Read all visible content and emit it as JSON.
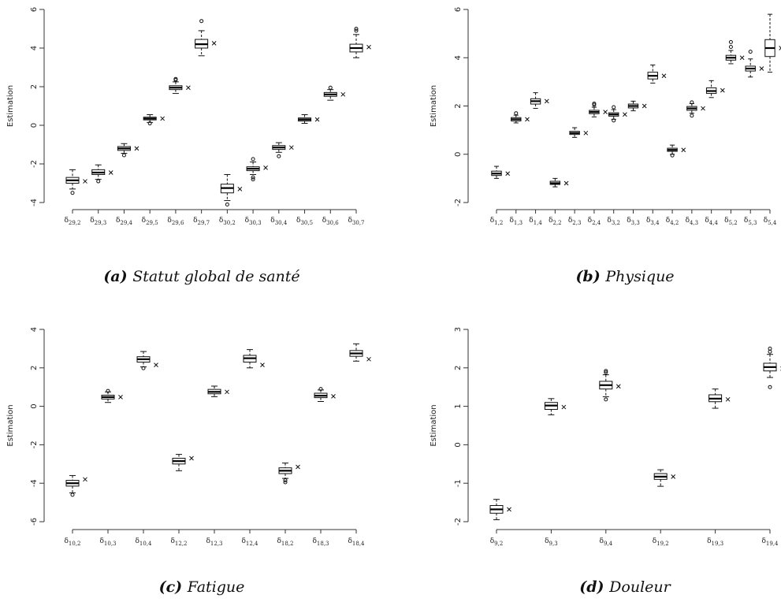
{
  "chart_data": [
    {
      "type": "boxplot",
      "caption_letter": "(a)",
      "caption_text": "Statut global de santé",
      "ylabel": "Estimation",
      "ylim": [
        -4,
        6
      ],
      "yticks": [
        -4,
        -2,
        0,
        2,
        4,
        6
      ],
      "categories": [
        {
          "base": "δ",
          "sub": "29,2"
        },
        {
          "base": "δ",
          "sub": "29,3"
        },
        {
          "base": "δ",
          "sub": "29,4"
        },
        {
          "base": "δ",
          "sub": "29,5"
        },
        {
          "base": "δ",
          "sub": "29,6"
        },
        {
          "base": "δ",
          "sub": "29,7"
        },
        {
          "base": "δ",
          "sub": "30,2"
        },
        {
          "base": "δ",
          "sub": "30,3"
        },
        {
          "base": "δ",
          "sub": "30,4"
        },
        {
          "base": "δ",
          "sub": "30,5"
        },
        {
          "base": "δ",
          "sub": "30,6"
        },
        {
          "base": "δ",
          "sub": "30,7"
        }
      ],
      "boxes": [
        {
          "whislo": -3.3,
          "q1": -3.0,
          "med": -2.85,
          "q3": -2.7,
          "whishi": -2.3,
          "fliers": [
            -3.5
          ],
          "true": -2.9
        },
        {
          "whislo": -2.8,
          "q1": -2.55,
          "med": -2.45,
          "q3": -2.3,
          "whishi": -2.05,
          "fliers": [
            -2.9
          ],
          "true": -2.45
        },
        {
          "whislo": -1.45,
          "q1": -1.3,
          "med": -1.2,
          "q3": -1.1,
          "whishi": -0.95,
          "fliers": [
            -1.55
          ],
          "true": -1.2
        },
        {
          "whislo": 0.15,
          "q1": 0.28,
          "med": 0.35,
          "q3": 0.42,
          "whishi": 0.55,
          "fliers": [
            0.1
          ],
          "true": 0.35
        },
        {
          "whislo": 1.65,
          "q1": 1.85,
          "med": 1.95,
          "q3": 2.05,
          "whishi": 2.25,
          "fliers": [
            2.35,
            2.4
          ],
          "true": 1.95
        },
        {
          "whislo": 3.6,
          "q1": 4.0,
          "med": 4.2,
          "q3": 4.45,
          "whishi": 4.9,
          "fliers": [
            5.4
          ],
          "true": 4.25
        },
        {
          "whislo": -3.9,
          "q1": -3.5,
          "med": -3.25,
          "q3": -3.05,
          "whishi": -2.55,
          "fliers": [
            -4.1
          ],
          "true": -3.3
        },
        {
          "whislo": -2.55,
          "q1": -2.35,
          "med": -2.25,
          "q3": -2.15,
          "whishi": -1.9,
          "fliers": [
            -2.7,
            -2.8,
            -1.75
          ],
          "true": -2.2
        },
        {
          "whislo": -1.4,
          "q1": -1.25,
          "med": -1.15,
          "q3": -1.05,
          "whishi": -0.9,
          "fliers": [
            -1.6
          ],
          "true": -1.15
        },
        {
          "whislo": 0.1,
          "q1": 0.22,
          "med": 0.3,
          "q3": 0.38,
          "whishi": 0.55,
          "fliers": [],
          "true": 0.3
        },
        {
          "whislo": 1.3,
          "q1": 1.5,
          "med": 1.6,
          "q3": 1.7,
          "whishi": 1.85,
          "fliers": [
            1.95
          ],
          "true": 1.6
        },
        {
          "whislo": 3.5,
          "q1": 3.8,
          "med": 4.0,
          "q3": 4.2,
          "whishi": 4.7,
          "fliers": [
            4.9,
            5.0
          ],
          "true": 4.05
        }
      ]
    },
    {
      "type": "boxplot",
      "caption_letter": "(b)",
      "caption_text": "Physique",
      "ylabel": "Estimation",
      "ylim": [
        -2,
        6
      ],
      "yticks": [
        -2,
        0,
        2,
        4,
        6
      ],
      "categories": [
        {
          "base": "δ",
          "sub": "1,2"
        },
        {
          "base": "δ",
          "sub": "1,3"
        },
        {
          "base": "δ",
          "sub": "1,4"
        },
        {
          "base": "δ",
          "sub": "2,2"
        },
        {
          "base": "δ",
          "sub": "2,3"
        },
        {
          "base": "δ",
          "sub": "2,4"
        },
        {
          "base": "δ",
          "sub": "3,2"
        },
        {
          "base": "δ",
          "sub": "3,3"
        },
        {
          "base": "δ",
          "sub": "3,4"
        },
        {
          "base": "δ",
          "sub": "4,2"
        },
        {
          "base": "δ",
          "sub": "4,3"
        },
        {
          "base": "δ",
          "sub": "4,4"
        },
        {
          "base": "δ",
          "sub": "5,2"
        },
        {
          "base": "δ",
          "sub": "5,3"
        },
        {
          "base": "δ",
          "sub": "5,4"
        }
      ],
      "boxes": [
        {
          "whislo": -1.0,
          "q1": -0.88,
          "med": -0.8,
          "q3": -0.7,
          "whishi": -0.5,
          "fliers": [],
          "true": -0.8
        },
        {
          "whislo": 1.3,
          "q1": 1.38,
          "med": 1.45,
          "q3": 1.52,
          "whishi": 1.62,
          "fliers": [
            1.7
          ],
          "true": 1.45
        },
        {
          "whislo": 1.9,
          "q1": 2.08,
          "med": 2.2,
          "q3": 2.3,
          "whishi": 2.55,
          "fliers": [],
          "true": 2.2
        },
        {
          "whislo": -1.35,
          "q1": -1.25,
          "med": -1.2,
          "q3": -1.12,
          "whishi": -1.0,
          "fliers": [],
          "true": -1.2
        },
        {
          "whislo": 0.7,
          "q1": 0.82,
          "med": 0.88,
          "q3": 0.95,
          "whishi": 1.1,
          "fliers": [],
          "true": 0.88
        },
        {
          "whislo": 1.55,
          "q1": 1.68,
          "med": 1.75,
          "q3": 1.82,
          "whishi": 1.95,
          "fliers": [
            2.05,
            2.1
          ],
          "true": 1.75
        },
        {
          "whislo": 1.45,
          "q1": 1.58,
          "med": 1.65,
          "q3": 1.72,
          "whishi": 1.85,
          "fliers": [
            1.4,
            1.95
          ],
          "true": 1.65
        },
        {
          "whislo": 1.8,
          "q1": 1.92,
          "med": 2.0,
          "q3": 2.08,
          "whishi": 2.2,
          "fliers": [],
          "true": 2.0
        },
        {
          "whislo": 2.95,
          "q1": 3.12,
          "med": 3.25,
          "q3": 3.4,
          "whishi": 3.7,
          "fliers": [],
          "true": 3.25
        },
        {
          "whislo": 0.0,
          "q1": 0.12,
          "med": 0.18,
          "q3": 0.25,
          "whishi": 0.38,
          "fliers": [
            -0.05
          ],
          "true": 0.18
        },
        {
          "whislo": 1.7,
          "q1": 1.82,
          "med": 1.9,
          "q3": 1.98,
          "whishi": 2.1,
          "fliers": [
            1.6,
            2.15
          ],
          "true": 1.9
        },
        {
          "whislo": 2.35,
          "q1": 2.52,
          "med": 2.62,
          "q3": 2.75,
          "whishi": 3.05,
          "fliers": [],
          "true": 2.65
        },
        {
          "whislo": 3.75,
          "q1": 3.9,
          "med": 4.0,
          "q3": 4.1,
          "whishi": 4.3,
          "fliers": [
            4.45,
            4.65
          ],
          "true": 4.0
        },
        {
          "whislo": 3.2,
          "q1": 3.45,
          "med": 3.55,
          "q3": 3.65,
          "whishi": 3.95,
          "fliers": [
            4.25
          ],
          "true": 3.55
        },
        {
          "whislo": 3.4,
          "q1": 4.05,
          "med": 4.4,
          "q3": 4.75,
          "whishi": 5.8,
          "fliers": [],
          "true": 4.4
        }
      ]
    },
    {
      "type": "boxplot",
      "caption_letter": "(c)",
      "caption_text": "Fatigue",
      "ylabel": "Estimation",
      "ylim": [
        -6,
        4
      ],
      "yticks": [
        -6,
        -4,
        -2,
        0,
        2,
        4
      ],
      "categories": [
        {
          "base": "δ",
          "sub": "10,2"
        },
        {
          "base": "δ",
          "sub": "10,3"
        },
        {
          "base": "δ",
          "sub": "10,4"
        },
        {
          "base": "δ",
          "sub": "12,2"
        },
        {
          "base": "δ",
          "sub": "12,3"
        },
        {
          "base": "δ",
          "sub": "12,4"
        },
        {
          "base": "δ",
          "sub": "18,2"
        },
        {
          "base": "δ",
          "sub": "18,3"
        },
        {
          "base": "δ",
          "sub": "18,4"
        }
      ],
      "boxes": [
        {
          "whislo": -4.5,
          "q1": -4.15,
          "med": -4.0,
          "q3": -3.85,
          "whishi": -3.6,
          "fliers": [
            -4.6
          ],
          "true": -3.8
        },
        {
          "whislo": 0.2,
          "q1": 0.38,
          "med": 0.48,
          "q3": 0.58,
          "whishi": 0.75,
          "fliers": [
            0.8
          ],
          "true": 0.48
        },
        {
          "whislo": 2.05,
          "q1": 2.3,
          "med": 2.45,
          "q3": 2.58,
          "whishi": 2.85,
          "fliers": [
            1.98
          ],
          "true": 2.15
        },
        {
          "whislo": -3.35,
          "q1": -3.0,
          "med": -2.85,
          "q3": -2.7,
          "whishi": -2.5,
          "fliers": [],
          "true": -2.7
        },
        {
          "whislo": 0.5,
          "q1": 0.65,
          "med": 0.75,
          "q3": 0.88,
          "whishi": 1.05,
          "fliers": [],
          "true": 0.75
        },
        {
          "whislo": 2.0,
          "q1": 2.3,
          "med": 2.5,
          "q3": 2.65,
          "whishi": 2.95,
          "fliers": [],
          "true": 2.15
        },
        {
          "whislo": -3.75,
          "q1": -3.5,
          "med": -3.35,
          "q3": -3.2,
          "whishi": -2.95,
          "fliers": [
            -3.85,
            -3.95
          ],
          "true": -3.15
        },
        {
          "whislo": 0.25,
          "q1": 0.45,
          "med": 0.55,
          "q3": 0.68,
          "whishi": 0.85,
          "fliers": [
            0.9
          ],
          "true": 0.52
        },
        {
          "whislo": 2.35,
          "q1": 2.6,
          "med": 2.75,
          "q3": 2.9,
          "whishi": 3.25,
          "fliers": [],
          "true": 2.45
        }
      ]
    },
    {
      "type": "boxplot",
      "caption_letter": "(d)",
      "caption_text": "Douleur",
      "ylabel": "Estimation",
      "ylim": [
        -2,
        3
      ],
      "yticks": [
        -2,
        -1,
        0,
        1,
        2,
        3
      ],
      "categories": [
        {
          "base": "δ",
          "sub": "9,2"
        },
        {
          "base": "δ",
          "sub": "9,3"
        },
        {
          "base": "δ",
          "sub": "9,4"
        },
        {
          "base": "δ",
          "sub": "19,2"
        },
        {
          "base": "δ",
          "sub": "19,3"
        },
        {
          "base": "δ",
          "sub": "19,4"
        }
      ],
      "boxes": [
        {
          "whislo": -1.95,
          "q1": -1.78,
          "med": -1.68,
          "q3": -1.58,
          "whishi": -1.42,
          "fliers": [],
          "true": -1.68
        },
        {
          "whislo": 0.78,
          "q1": 0.92,
          "med": 1.02,
          "q3": 1.1,
          "whishi": 1.2,
          "fliers": [],
          "true": 0.98
        },
        {
          "whislo": 1.25,
          "q1": 1.45,
          "med": 1.55,
          "q3": 1.65,
          "whishi": 1.82,
          "fliers": [
            1.18,
            1.88,
            1.92
          ],
          "true": 1.52
        },
        {
          "whislo": -1.08,
          "q1": -0.9,
          "med": -0.83,
          "q3": -0.75,
          "whishi": -0.65,
          "fliers": [],
          "true": -0.83
        },
        {
          "whislo": 0.95,
          "q1": 1.12,
          "med": 1.2,
          "q3": 1.3,
          "whishi": 1.45,
          "fliers": [],
          "true": 1.18
        },
        {
          "whislo": 1.75,
          "q1": 1.92,
          "med": 2.02,
          "q3": 2.12,
          "whishi": 2.35,
          "fliers": [
            1.5,
            2.42,
            2.5
          ],
          "true": 1.98
        }
      ]
    }
  ]
}
